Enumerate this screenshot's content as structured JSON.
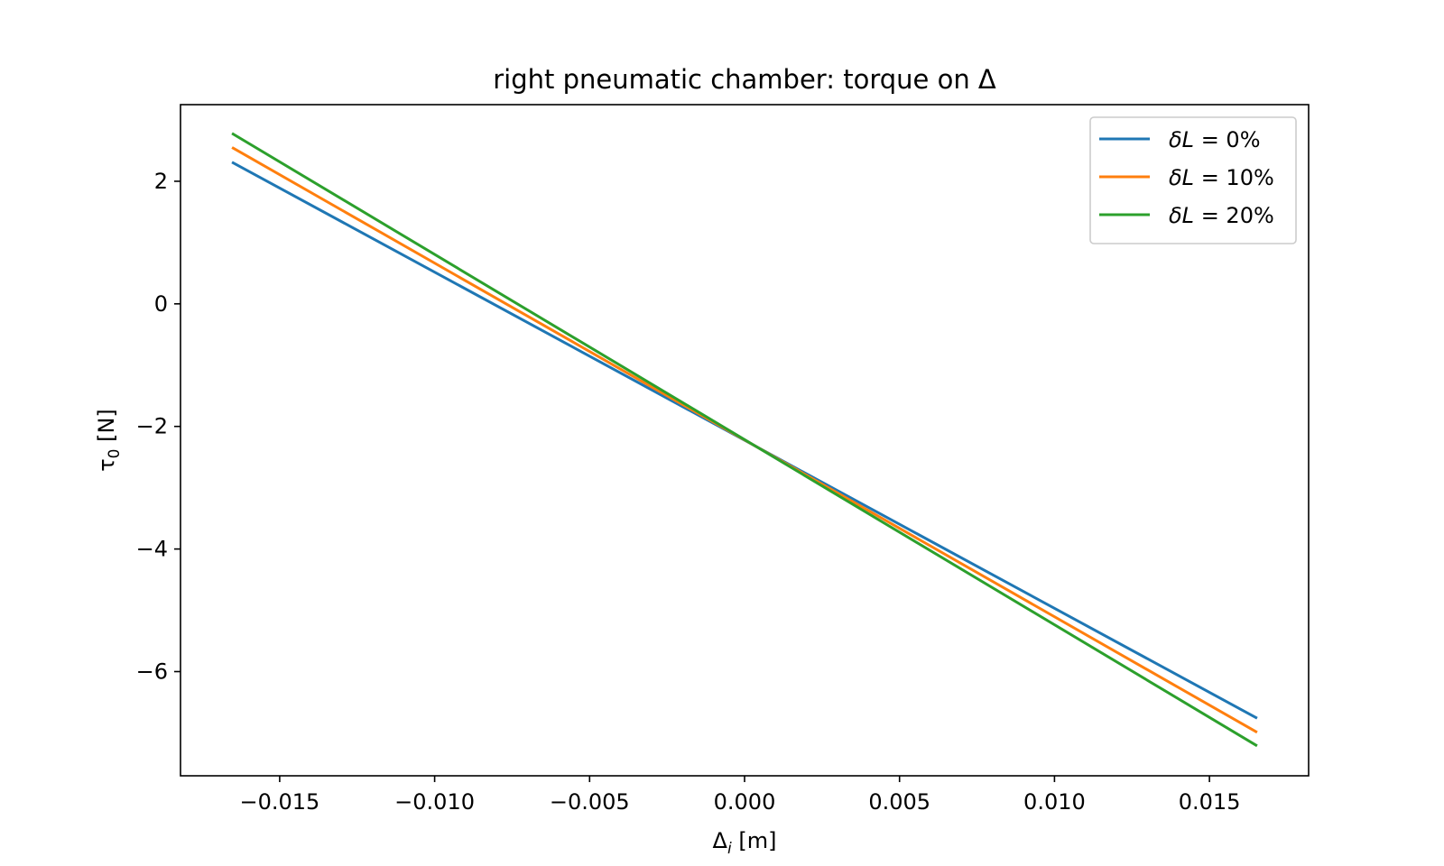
{
  "chart_data": {
    "type": "line",
    "title": "right pneumatic chamber: torque on Δ",
    "xlabel": "Δ",
    "xlabel_sub": "i",
    "xlabel_unit": " [m]",
    "ylabel": "τ",
    "ylabel_sub": "0",
    "ylabel_unit": " [N]",
    "xlim": [
      -0.0182,
      0.0182
    ],
    "ylim": [
      -7.7,
      3.25
    ],
    "xticks": [
      -0.015,
      -0.01,
      -0.005,
      0.0,
      0.005,
      0.01,
      0.015
    ],
    "xtick_labels": [
      "−0.015",
      "−0.010",
      "−0.005",
      "0.000",
      "0.005",
      "0.010",
      "0.015"
    ],
    "yticks": [
      2,
      0,
      -2,
      -4,
      -6
    ],
    "ytick_labels": [
      "2",
      "0",
      "−2",
      "−4",
      "−6"
    ],
    "grid": false,
    "legend_position": "top-right",
    "series": [
      {
        "name": "δL = 0%",
        "legend_main": "δL",
        "legend_rest": " = 0%",
        "color": "#1f77b4",
        "x": [
          -0.0165,
          0.0165
        ],
        "y": [
          2.3,
          -6.75
        ]
      },
      {
        "name": "δL = 10%",
        "legend_main": "δL",
        "legend_rest": " = 10%",
        "color": "#ff7f0e",
        "x": [
          -0.0165,
          0.0165
        ],
        "y": [
          2.54,
          -6.98
        ]
      },
      {
        "name": "δL = 20%",
        "legend_main": "δL",
        "legend_rest": " = 20%",
        "color": "#2ca02c",
        "x": [
          -0.0165,
          0.0165
        ],
        "y": [
          2.77,
          -7.2
        ]
      }
    ]
  }
}
